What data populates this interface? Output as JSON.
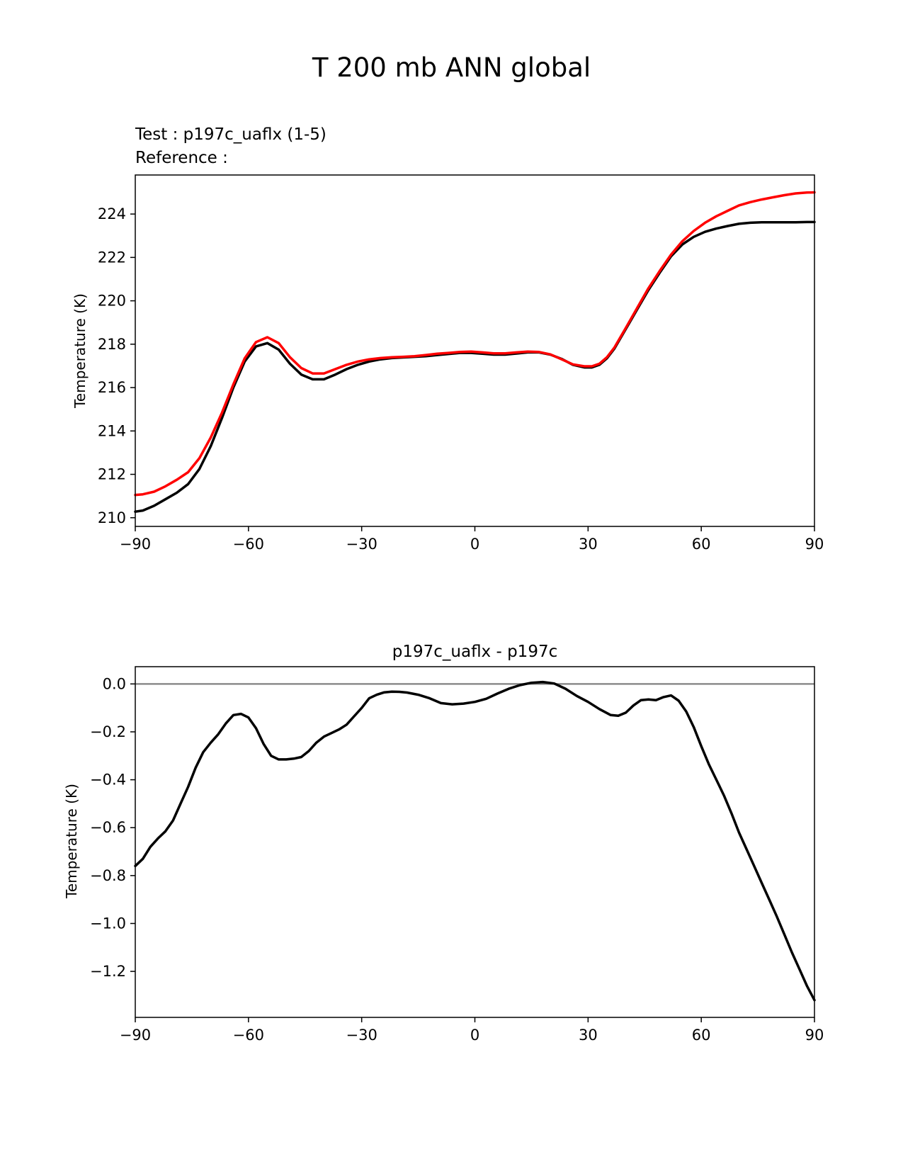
{
  "figure_title": "T 200 mb ANN global",
  "colors": {
    "test": "#000000",
    "reference": "#ff0000",
    "zero_line": "#808080",
    "axes": "#000000"
  },
  "chart_data": [
    {
      "type": "line",
      "id": "top",
      "title": "",
      "test_label": "Test : p197c_uaflx (1-5)",
      "reference_label": "Reference :",
      "xlabel": "",
      "ylabel": "Temperature (K)",
      "xlim": [
        -90,
        90
      ],
      "ylim": [
        209.6,
        225.8
      ],
      "xticks": [
        -90,
        -60,
        -30,
        0,
        30,
        60,
        90
      ],
      "xtick_labels": [
        "−90",
        "−60",
        "−30",
        "0",
        "30",
        "60",
        "90"
      ],
      "yticks": [
        210,
        212,
        214,
        216,
        218,
        220,
        222,
        224
      ],
      "ytick_labels": [
        "210",
        "212",
        "214",
        "216",
        "218",
        "220",
        "222",
        "224"
      ],
      "series": [
        {
          "name": "Test",
          "color": "#000000",
          "x": [
            -90,
            -88,
            -85,
            -82,
            -79,
            -76,
            -73,
            -70,
            -67,
            -64,
            -61,
            -58,
            -55,
            -52,
            -49,
            -46,
            -43,
            -40,
            -37,
            -34,
            -31,
            -28,
            -25,
            -22,
            -19,
            -16,
            -13,
            -10,
            -7,
            -4,
            -1,
            2,
            5,
            8,
            11,
            14,
            17,
            20,
            23,
            26,
            29,
            31,
            33,
            35,
            37,
            40,
            43,
            46,
            49,
            52,
            55,
            58,
            61,
            64,
            67,
            70,
            73,
            76,
            79,
            82,
            85,
            88,
            90
          ],
          "y": [
            210.28,
            210.33,
            210.55,
            210.85,
            211.15,
            211.55,
            212.25,
            213.3,
            214.6,
            216.0,
            217.2,
            217.9,
            218.05,
            217.75,
            217.1,
            216.6,
            216.38,
            216.38,
            216.6,
            216.85,
            217.05,
            217.2,
            217.3,
            217.36,
            217.39,
            217.42,
            217.45,
            217.5,
            217.55,
            217.6,
            217.6,
            217.56,
            217.52,
            217.52,
            217.57,
            217.62,
            217.62,
            217.52,
            217.32,
            217.05,
            216.93,
            216.93,
            217.05,
            217.35,
            217.8,
            218.7,
            219.6,
            220.5,
            221.3,
            222.05,
            222.6,
            222.95,
            223.18,
            223.33,
            223.45,
            223.55,
            223.6,
            223.62,
            223.62,
            223.62,
            223.62,
            223.63,
            223.63
          ]
        },
        {
          "name": "Reference",
          "color": "#ff0000",
          "x": [
            -90,
            -88,
            -85,
            -82,
            -79,
            -76,
            -73,
            -70,
            -67,
            -64,
            -61,
            -58,
            -55,
            -52,
            -49,
            -46,
            -43,
            -40,
            -37,
            -34,
            -31,
            -28,
            -25,
            -22,
            -19,
            -16,
            -13,
            -10,
            -7,
            -4,
            -1,
            2,
            5,
            8,
            11,
            14,
            17,
            20,
            23,
            26,
            29,
            31,
            33,
            35,
            37,
            40,
            43,
            46,
            49,
            52,
            55,
            58,
            61,
            64,
            67,
            70,
            73,
            76,
            79,
            82,
            85,
            88,
            90
          ],
          "y": [
            211.05,
            211.08,
            211.2,
            211.45,
            211.75,
            212.1,
            212.75,
            213.7,
            214.85,
            216.15,
            217.35,
            218.1,
            218.32,
            218.05,
            217.4,
            216.9,
            216.65,
            216.65,
            216.85,
            217.05,
            217.2,
            217.3,
            217.36,
            217.4,
            217.42,
            217.45,
            217.5,
            217.56,
            217.6,
            217.64,
            217.66,
            217.62,
            217.58,
            217.58,
            217.62,
            217.66,
            217.64,
            217.53,
            217.3,
            217.07,
            216.98,
            216.98,
            217.1,
            217.4,
            217.85,
            218.75,
            219.67,
            220.58,
            221.38,
            222.13,
            222.75,
            223.22,
            223.6,
            223.9,
            224.15,
            224.4,
            224.55,
            224.67,
            224.77,
            224.87,
            224.95,
            224.99,
            225.0
          ]
        }
      ]
    },
    {
      "type": "line",
      "id": "bottom",
      "title": "p197c_uaflx - p197c",
      "xlabel": "",
      "ylabel": "Temperature (K)",
      "xlim": [
        -90,
        90
      ],
      "ylim": [
        -1.392,
        0.072
      ],
      "xticks": [
        -90,
        -60,
        -30,
        0,
        30,
        60,
        90
      ],
      "xtick_labels": [
        "−90",
        "−60",
        "−30",
        "0",
        "30",
        "60",
        "90"
      ],
      "yticks": [
        0.0,
        -0.2,
        -0.4,
        -0.6,
        -0.8,
        -1.0,
        -1.2
      ],
      "ytick_labels": [
        "0.0",
        "−0.2",
        "−0.4",
        "−0.6",
        "−0.8",
        "−1.0",
        "−1.2"
      ],
      "zero_line": 0,
      "series": [
        {
          "name": "Difference",
          "color": "#000000",
          "x": [
            -90,
            -88,
            -86,
            -84,
            -82,
            -80,
            -78,
            -76,
            -74,
            -72,
            -70,
            -68,
            -66,
            -64,
            -62,
            -60,
            -58,
            -56,
            -54,
            -52,
            -50,
            -48,
            -46,
            -44,
            -42,
            -40,
            -38,
            -36,
            -34,
            -32,
            -30,
            -28,
            -26,
            -24,
            -22,
            -20,
            -18,
            -15,
            -12,
            -9,
            -6,
            -3,
            0,
            3,
            6,
            9,
            12,
            15,
            18,
            21,
            24,
            27,
            30,
            33,
            36,
            38,
            40,
            42,
            44,
            46,
            48,
            50,
            52,
            54,
            56,
            58,
            60,
            62,
            64,
            66,
            68,
            70,
            72,
            74,
            76,
            78,
            80,
            82,
            84,
            86,
            88,
            90
          ],
          "y": [
            -0.76,
            -0.73,
            -0.68,
            -0.645,
            -0.615,
            -0.57,
            -0.5,
            -0.43,
            -0.35,
            -0.285,
            -0.245,
            -0.21,
            -0.165,
            -0.13,
            -0.125,
            -0.14,
            -0.185,
            -0.25,
            -0.3,
            -0.315,
            -0.315,
            -0.312,
            -0.305,
            -0.28,
            -0.245,
            -0.22,
            -0.205,
            -0.19,
            -0.17,
            -0.135,
            -0.1,
            -0.06,
            -0.045,
            -0.035,
            -0.032,
            -0.033,
            -0.036,
            -0.045,
            -0.06,
            -0.08,
            -0.085,
            -0.082,
            -0.075,
            -0.062,
            -0.04,
            -0.02,
            -0.005,
            0.005,
            0.008,
            0.002,
            -0.02,
            -0.05,
            -0.075,
            -0.105,
            -0.13,
            -0.133,
            -0.12,
            -0.09,
            -0.068,
            -0.065,
            -0.068,
            -0.055,
            -0.048,
            -0.07,
            -0.115,
            -0.18,
            -0.26,
            -0.335,
            -0.4,
            -0.465,
            -0.54,
            -0.62,
            -0.69,
            -0.76,
            -0.83,
            -0.9,
            -0.97,
            -1.045,
            -1.12,
            -1.19,
            -1.26,
            -1.32
          ]
        }
      ]
    }
  ]
}
